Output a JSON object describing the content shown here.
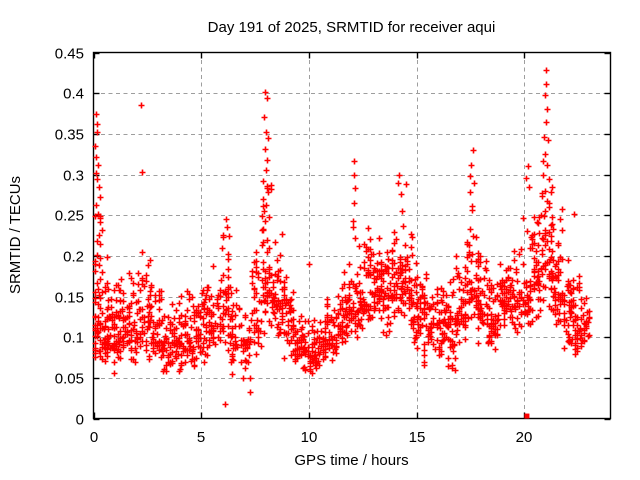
{
  "figure": {
    "background": "#ffffff"
  },
  "chart_data": {
    "type": "scatter",
    "title": "Day 191 of 2025, SRMTID for receiver aqui",
    "xlabel": "GPS time / hours",
    "ylabel": "SRMTID / TECUs",
    "xlim": [
      0,
      24
    ],
    "ylim": [
      0,
      0.45
    ],
    "xticks": {
      "values": [
        0,
        5,
        10,
        15,
        20
      ],
      "labels": [
        "0",
        "5",
        "10",
        "15",
        "20"
      ]
    },
    "yticks": {
      "values": [
        0,
        0.05,
        0.1,
        0.15,
        0.2,
        0.25,
        0.3,
        0.35,
        0.4,
        0.45
      ],
      "labels": [
        "0",
        "0.05",
        "0.1",
        "0.15",
        "0.2",
        "0.25",
        "0.3",
        "0.35",
        "0.4",
        "0.45"
      ]
    },
    "grid": true,
    "grid_style": "dashed-gray",
    "legend": "none",
    "marker": "+",
    "marker_color": "#ff0000",
    "axis_color": "#000000",
    "grid_color": "#9e9e9e",
    "series_name": "SRMTID",
    "seed": 191,
    "density_bins": [
      [
        0.0,
        0.35,
        0.05,
        0.12,
        0.33,
        48
      ],
      [
        0.35,
        0.7,
        0.05,
        0.1,
        0.27,
        42
      ],
      [
        0.7,
        1.2,
        0.05,
        0.1,
        0.19,
        48
      ],
      [
        1.2,
        1.7,
        0.06,
        0.11,
        0.21,
        46
      ],
      [
        1.7,
        2.2,
        0.05,
        0.11,
        0.22,
        42
      ],
      [
        2.2,
        2.7,
        0.06,
        0.12,
        0.24,
        42
      ],
      [
        2.7,
        3.2,
        0.05,
        0.1,
        0.18,
        40
      ],
      [
        3.2,
        3.7,
        0.04,
        0.09,
        0.16,
        38
      ],
      [
        3.7,
        4.2,
        0.05,
        0.09,
        0.17,
        38
      ],
      [
        4.2,
        4.7,
        0.05,
        0.1,
        0.19,
        40
      ],
      [
        4.7,
        5.2,
        0.06,
        0.11,
        0.2,
        40
      ],
      [
        5.2,
        5.7,
        0.06,
        0.12,
        0.22,
        40
      ],
      [
        5.7,
        6.3,
        0.04,
        0.14,
        0.245,
        48
      ],
      [
        6.3,
        6.8,
        0.03,
        0.1,
        0.19,
        34
      ],
      [
        6.8,
        7.3,
        0.03,
        0.08,
        0.15,
        30
      ],
      [
        7.3,
        7.8,
        0.06,
        0.12,
        0.25,
        40
      ],
      [
        7.8,
        8.3,
        0.08,
        0.17,
        0.33,
        50
      ],
      [
        8.3,
        8.8,
        0.08,
        0.15,
        0.27,
        46
      ],
      [
        8.8,
        9.3,
        0.06,
        0.12,
        0.2,
        42
      ],
      [
        9.3,
        9.8,
        0.04,
        0.09,
        0.15,
        40
      ],
      [
        9.8,
        10.3,
        0.04,
        0.08,
        0.14,
        40
      ],
      [
        10.3,
        10.8,
        0.05,
        0.09,
        0.15,
        40
      ],
      [
        10.8,
        11.3,
        0.06,
        0.1,
        0.17,
        40
      ],
      [
        11.3,
        11.8,
        0.07,
        0.12,
        0.2,
        40
      ],
      [
        11.8,
        12.3,
        0.08,
        0.14,
        0.26,
        42
      ],
      [
        12.3,
        12.8,
        0.09,
        0.15,
        0.25,
        46
      ],
      [
        12.8,
        13.3,
        0.1,
        0.16,
        0.26,
        46
      ],
      [
        13.3,
        13.8,
        0.08,
        0.15,
        0.25,
        44
      ],
      [
        13.8,
        14.3,
        0.1,
        0.17,
        0.28,
        46
      ],
      [
        14.3,
        14.8,
        0.1,
        0.16,
        0.27,
        44
      ],
      [
        14.8,
        15.3,
        0.06,
        0.13,
        0.21,
        42
      ],
      [
        15.3,
        15.8,
        0.06,
        0.12,
        0.19,
        40
      ],
      [
        15.8,
        16.3,
        0.05,
        0.11,
        0.18,
        40
      ],
      [
        16.3,
        16.8,
        0.04,
        0.11,
        0.19,
        40
      ],
      [
        16.8,
        17.3,
        0.08,
        0.14,
        0.24,
        44
      ],
      [
        17.3,
        17.8,
        0.1,
        0.16,
        0.3,
        46
      ],
      [
        17.8,
        18.3,
        0.08,
        0.14,
        0.24,
        44
      ],
      [
        18.3,
        18.8,
        0.06,
        0.12,
        0.2,
        44
      ],
      [
        18.8,
        19.3,
        0.1,
        0.15,
        0.22,
        44
      ],
      [
        19.3,
        19.8,
        0.1,
        0.14,
        0.22,
        40
      ],
      [
        19.8,
        20.3,
        0.1,
        0.15,
        0.28,
        44
      ],
      [
        20.3,
        20.8,
        0.1,
        0.17,
        0.3,
        48
      ],
      [
        20.8,
        21.3,
        0.12,
        0.2,
        0.35,
        50
      ],
      [
        21.3,
        21.8,
        0.1,
        0.16,
        0.29,
        44
      ],
      [
        21.8,
        22.3,
        0.05,
        0.13,
        0.24,
        44
      ],
      [
        22.3,
        22.8,
        0.05,
        0.11,
        0.19,
        44
      ],
      [
        22.8,
        23.05,
        0.08,
        0.12,
        0.16,
        14
      ]
    ],
    "outlier_points": [
      [
        0.1,
        0.375
      ],
      [
        0.14,
        0.362
      ],
      [
        0.18,
        0.352
      ],
      [
        0.08,
        0.335
      ],
      [
        0.12,
        0.322
      ],
      [
        0.2,
        0.312
      ],
      [
        0.1,
        0.302
      ],
      [
        0.16,
        0.295
      ],
      [
        0.24,
        0.285
      ],
      [
        0.3,
        0.272
      ],
      [
        0.12,
        0.262
      ],
      [
        0.22,
        0.252
      ],
      [
        0.32,
        0.242
      ],
      [
        0.4,
        0.232
      ],
      [
        2.2,
        0.385
      ],
      [
        2.27,
        0.303
      ],
      [
        6.15,
        0.245
      ],
      [
        6.22,
        0.235
      ],
      [
        6.3,
        0.225
      ],
      [
        6.1,
        0.018
      ],
      [
        7.98,
        0.401
      ],
      [
        8.04,
        0.394
      ],
      [
        7.9,
        0.371
      ],
      [
        8.0,
        0.352
      ],
      [
        8.1,
        0.345
      ],
      [
        7.94,
        0.331
      ],
      [
        8.06,
        0.318
      ],
      [
        8.0,
        0.305
      ],
      [
        7.88,
        0.292
      ],
      [
        8.12,
        0.279
      ],
      [
        8.0,
        0.263
      ],
      [
        7.84,
        0.249
      ],
      [
        10.0,
        0.19
      ],
      [
        12.1,
        0.317
      ],
      [
        12.08,
        0.3
      ],
      [
        12.12,
        0.284
      ],
      [
        12.1,
        0.265
      ],
      [
        12.05,
        0.243
      ],
      [
        12.12,
        0.222
      ],
      [
        14.2,
        0.3
      ],
      [
        14.12,
        0.29
      ],
      [
        14.5,
        0.288
      ],
      [
        14.28,
        0.276
      ],
      [
        17.6,
        0.33
      ],
      [
        17.54,
        0.312
      ],
      [
        17.5,
        0.298
      ],
      [
        17.66,
        0.289
      ],
      [
        17.46,
        0.279
      ],
      [
        20.15,
        0.31
      ],
      [
        20.1,
        0.296
      ],
      [
        20.22,
        0.285
      ],
      [
        21.0,
        0.428
      ],
      [
        21.02,
        0.411
      ],
      [
        20.98,
        0.398
      ],
      [
        21.05,
        0.381
      ],
      [
        21.0,
        0.364
      ],
      [
        20.9,
        0.346
      ],
      [
        21.1,
        0.342
      ],
      [
        20.95,
        0.325
      ],
      [
        21.06,
        0.312
      ],
      [
        20.85,
        0.3
      ],
      [
        21.16,
        0.294
      ],
      [
        21.24,
        0.278
      ],
      [
        22.3,
        0.252
      ]
    ],
    "special_points": [
      {
        "x": 20.12,
        "y": 0.003,
        "marker": "filled-square"
      }
    ]
  }
}
